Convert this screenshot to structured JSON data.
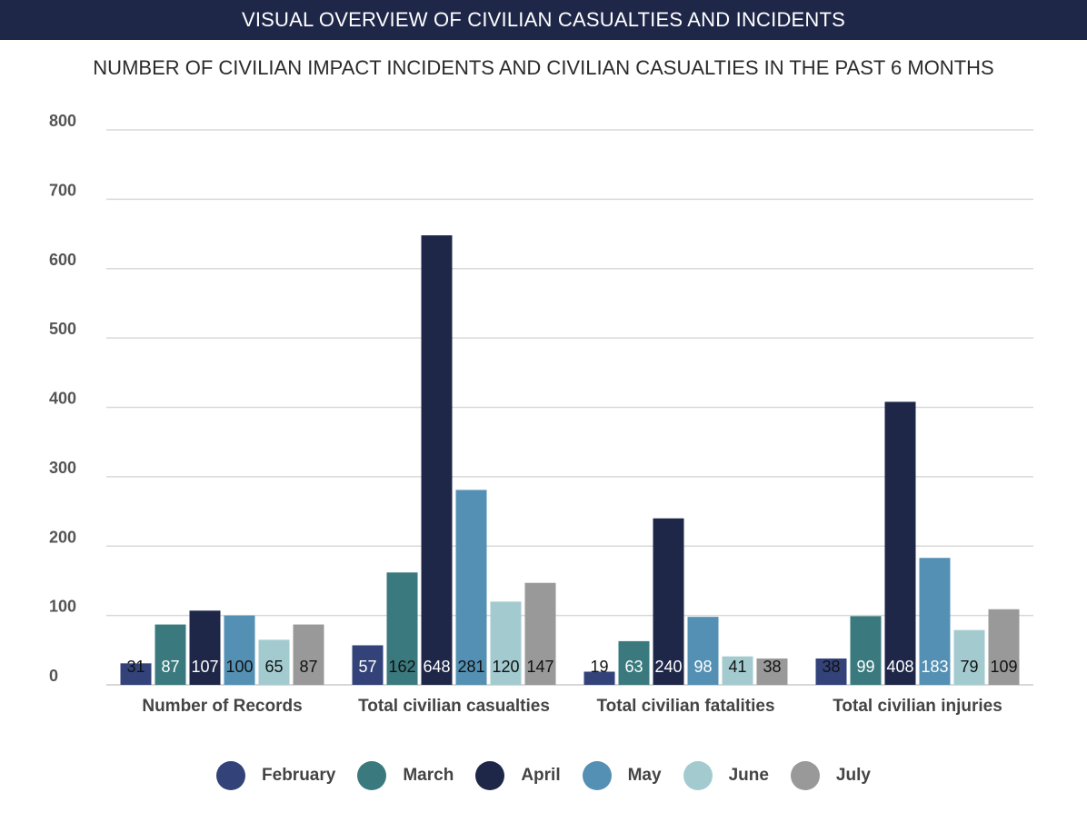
{
  "header": {
    "banner": "VISUAL OVERVIEW OF CIVILIAN CASUALTIES AND INCIDENTS",
    "subtitle": "NUMBER OF CIVILIAN IMPACT INCIDENTS AND CIVILIAN CASUALTIES IN THE PAST 6 MONTHS"
  },
  "colors": {
    "banner_bg": "#1f2749",
    "February": "#33437a",
    "March": "#3a7a7e",
    "April": "#1f2749",
    "May": "#5490b4",
    "June": "#a3cbcf",
    "July": "#999999",
    "grid": "#d9d9d9"
  },
  "chart_data": {
    "type": "bar",
    "title": "NUMBER OF CIVILIAN IMPACT INCIDENTS AND CIVILIAN CASUALTIES IN THE PAST 6 MONTHS",
    "xlabel": "",
    "ylabel": "",
    "ylim": [
      0,
      800
    ],
    "yticks": [
      0,
      100,
      200,
      300,
      400,
      500,
      600,
      700,
      800
    ],
    "grid": true,
    "legend_position": "bottom",
    "categories": [
      "Number of Records",
      "Total civilian casualties",
      "Total civilian fatalities",
      "Total civilian injuries"
    ],
    "series": [
      {
        "name": "February",
        "color": "#33437a",
        "label_color": "#111111",
        "values": [
          31,
          57,
          19,
          38
        ]
      },
      {
        "name": "March",
        "color": "#3a7a7e",
        "label_color": "#ffffff",
        "values": [
          87,
          162,
          63,
          99
        ]
      },
      {
        "name": "April",
        "color": "#1f2749",
        "label_color": "#ffffff",
        "values": [
          107,
          648,
          240,
          408
        ]
      },
      {
        "name": "May",
        "color": "#5490b4",
        "label_color": "#111111",
        "values": [
          100,
          281,
          98,
          183
        ]
      },
      {
        "name": "June",
        "color": "#a3cbcf",
        "label_color": "#111111",
        "values": [
          65,
          120,
          41,
          79
        ]
      },
      {
        "name": "July",
        "color": "#999999",
        "label_color": "#111111",
        "values": [
          87,
          147,
          38,
          109
        ]
      }
    ],
    "label_overrides": {
      "1.0": "#ffffff",
      "1.1": "#111111",
      "1.2": "#ffffff",
      "1.3": "#ffffff",
      "0.1": "#ffffff",
      "3.2": "#ffffff",
      "3.3": "#ffffff"
    }
  }
}
